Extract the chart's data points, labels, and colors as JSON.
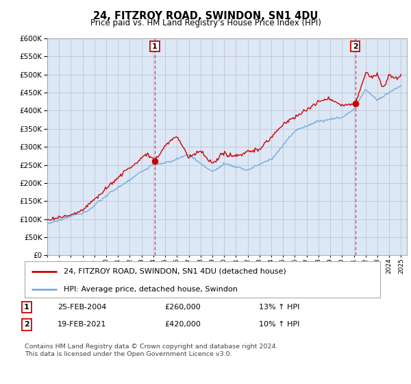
{
  "title": "24, FITZROY ROAD, SWINDON, SN1 4DU",
  "subtitle": "Price paid vs. HM Land Registry's House Price Index (HPI)",
  "legend_line1": "24, FITZROY ROAD, SWINDON, SN1 4DU (detached house)",
  "legend_line2": "HPI: Average price, detached house, Swindon",
  "transaction1_date": "25-FEB-2004",
  "transaction1_price": "£260,000",
  "transaction1_hpi": "13% ↑ HPI",
  "transaction2_date": "19-FEB-2021",
  "transaction2_price": "£420,000",
  "transaction2_hpi": "10% ↑ HPI",
  "footer": "Contains HM Land Registry data © Crown copyright and database right 2024.\nThis data is licensed under the Open Government Licence v3.0.",
  "red_color": "#cc0000",
  "blue_color": "#7aaadd",
  "bg_plot_color": "#dce8f5",
  "background_color": "#ffffff",
  "grid_color": "#bbbbcc",
  "ylim": [
    0,
    600000
  ],
  "yticks": [
    0,
    50000,
    100000,
    150000,
    200000,
    250000,
    300000,
    350000,
    400000,
    450000,
    500000,
    550000,
    600000
  ],
  "transaction1_year": 2004.12,
  "transaction1_value": 260000,
  "transaction2_year": 2021.12,
  "transaction2_value": 420000
}
